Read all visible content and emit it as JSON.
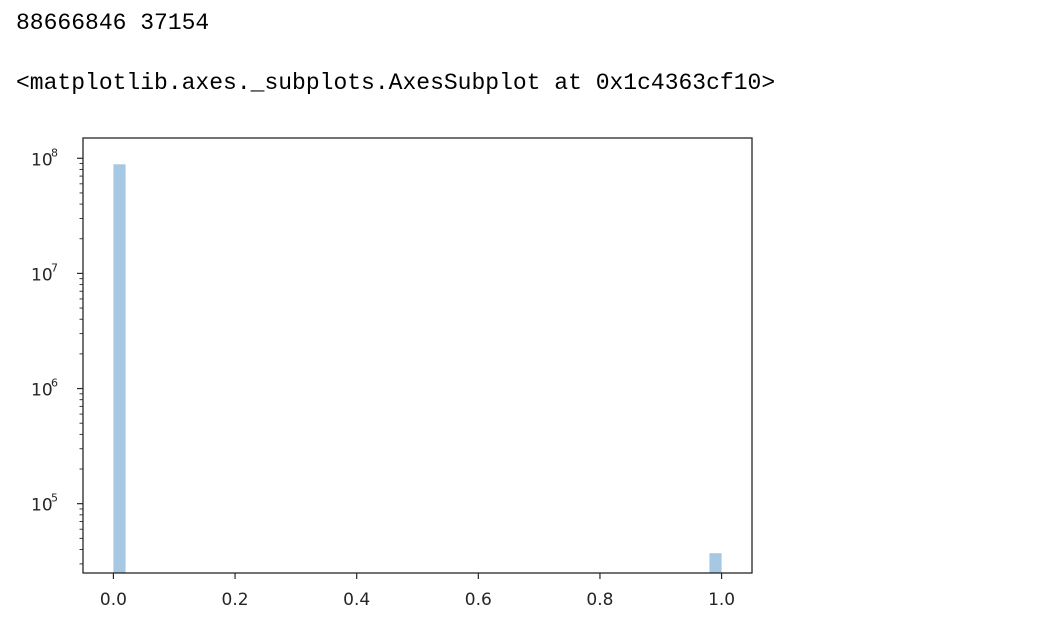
{
  "output": {
    "stdout": "88666846 37154",
    "repr": "<matplotlib.axes._subplots.AxesSubplot at 0x1c4363cf10>"
  },
  "colors": {
    "bar": "#a6c8e2",
    "axes": "#262626"
  },
  "chart_data": {
    "type": "bar",
    "title": "",
    "xlabel": "",
    "ylabel": "",
    "yscale": "log",
    "grid": false,
    "xlim": [
      -0.05,
      1.05
    ],
    "ylim": [
      25000,
      150000000
    ],
    "x_ticks": [
      0.0,
      0.2,
      0.4,
      0.6,
      0.8,
      1.0
    ],
    "x_tick_labels": [
      "0.0",
      "0.2",
      "0.4",
      "0.6",
      "0.8",
      "1.0"
    ],
    "y_ticks": [
      100000,
      1000000,
      10000000,
      100000000
    ],
    "y_tick_labels": [
      {
        "base": "10",
        "exp": "5"
      },
      {
        "base": "10",
        "exp": "6"
      },
      {
        "base": "10",
        "exp": "7"
      },
      {
        "base": "10",
        "exp": "8"
      }
    ],
    "bins": [
      {
        "x0": 0.0,
        "x1": 0.02,
        "value": 88666846
      },
      {
        "x0": 0.98,
        "x1": 1.0,
        "value": 37154
      }
    ]
  }
}
